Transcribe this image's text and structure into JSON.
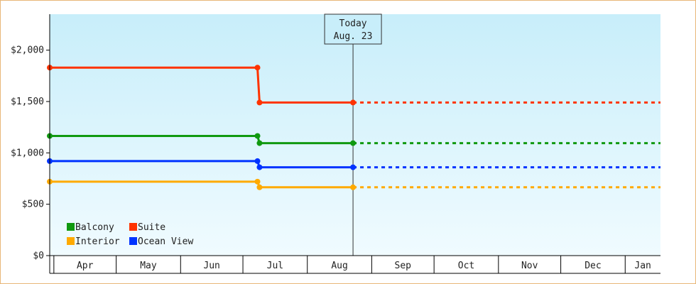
{
  "chart_data": {
    "type": "line",
    "title": "",
    "xlabel": "",
    "ylabel": "",
    "ylim": [
      0,
      2350
    ],
    "y_ticks": [
      "$0",
      "$500",
      "$1,000",
      "$1,500",
      "$2,000"
    ],
    "y_tick_values": [
      0,
      500,
      1000,
      1500,
      2000
    ],
    "x_months": [
      "Apr",
      "May",
      "Jun",
      "Jul",
      "Aug",
      "Sep",
      "Oct",
      "Nov",
      "Dec",
      "Jan"
    ],
    "xlim": [
      "2024-03-30",
      "2025-01-18"
    ],
    "today": {
      "label_line1": "Today",
      "label_line2": "Aug. 23",
      "date": "2024-08-23"
    },
    "series": [
      {
        "name": "Suite",
        "color": "#ff3300",
        "points": [
          [
            "2024-03-30",
            1830
          ],
          [
            "2024-07-08",
            1830
          ],
          [
            "2024-07-09",
            1490
          ],
          [
            "2024-08-23",
            1490
          ]
        ],
        "projected": [
          [
            "2024-08-23",
            1490
          ],
          [
            "2025-01-18",
            1490
          ]
        ]
      },
      {
        "name": "Balcony",
        "color": "#109910",
        "points": [
          [
            "2024-03-30",
            1165
          ],
          [
            "2024-07-08",
            1165
          ],
          [
            "2024-07-09",
            1095
          ],
          [
            "2024-08-23",
            1095
          ]
        ],
        "projected": [
          [
            "2024-08-23",
            1095
          ],
          [
            "2025-01-18",
            1095
          ]
        ]
      },
      {
        "name": "Ocean View",
        "color": "#0033ff",
        "points": [
          [
            "2024-03-30",
            920
          ],
          [
            "2024-07-08",
            920
          ],
          [
            "2024-07-09",
            860
          ],
          [
            "2024-08-23",
            860
          ]
        ],
        "projected": [
          [
            "2024-08-23",
            860
          ],
          [
            "2025-01-18",
            860
          ]
        ]
      },
      {
        "name": "Interior",
        "color": "#ffaa00",
        "points": [
          [
            "2024-03-30",
            720
          ],
          [
            "2024-07-08",
            720
          ],
          [
            "2024-07-09",
            665
          ],
          [
            "2024-08-23",
            665
          ]
        ],
        "projected": [
          [
            "2024-08-23",
            665
          ],
          [
            "2025-01-18",
            665
          ]
        ]
      }
    ],
    "legend": {
      "placement": "bottom-left",
      "items": [
        {
          "label": "Balcony",
          "color": "#109910"
        },
        {
          "label": "Suite",
          "color": "#ff3300"
        },
        {
          "label": "Interior",
          "color": "#ffaa00"
        },
        {
          "label": "Ocean View",
          "color": "#0033ff"
        }
      ]
    },
    "grid": false
  }
}
